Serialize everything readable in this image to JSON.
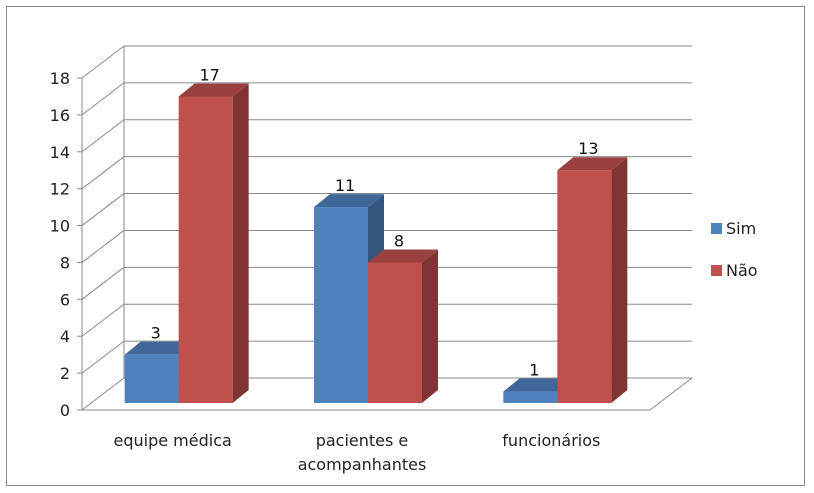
{
  "chart_data": {
    "type": "bar",
    "categories": [
      "equipe médica",
      "pacientes e acompanhantes",
      "funcionários"
    ],
    "category_lines": [
      [
        "equipe médica"
      ],
      [
        "pacientes e",
        "acompanhantes"
      ],
      [
        "funcionários"
      ]
    ],
    "series": [
      {
        "name": "Sim",
        "values": [
          3,
          11,
          1
        ],
        "color": "#4f81bd"
      },
      {
        "name": "Não",
        "values": [
          17,
          8,
          13
        ],
        "color": "#c0504d"
      }
    ],
    "ylim": [
      0,
      18
    ],
    "yticks": [
      0,
      2,
      4,
      6,
      8,
      10,
      12,
      14,
      16,
      18
    ],
    "grid": true,
    "three_d": true,
    "legend_position": "right"
  }
}
